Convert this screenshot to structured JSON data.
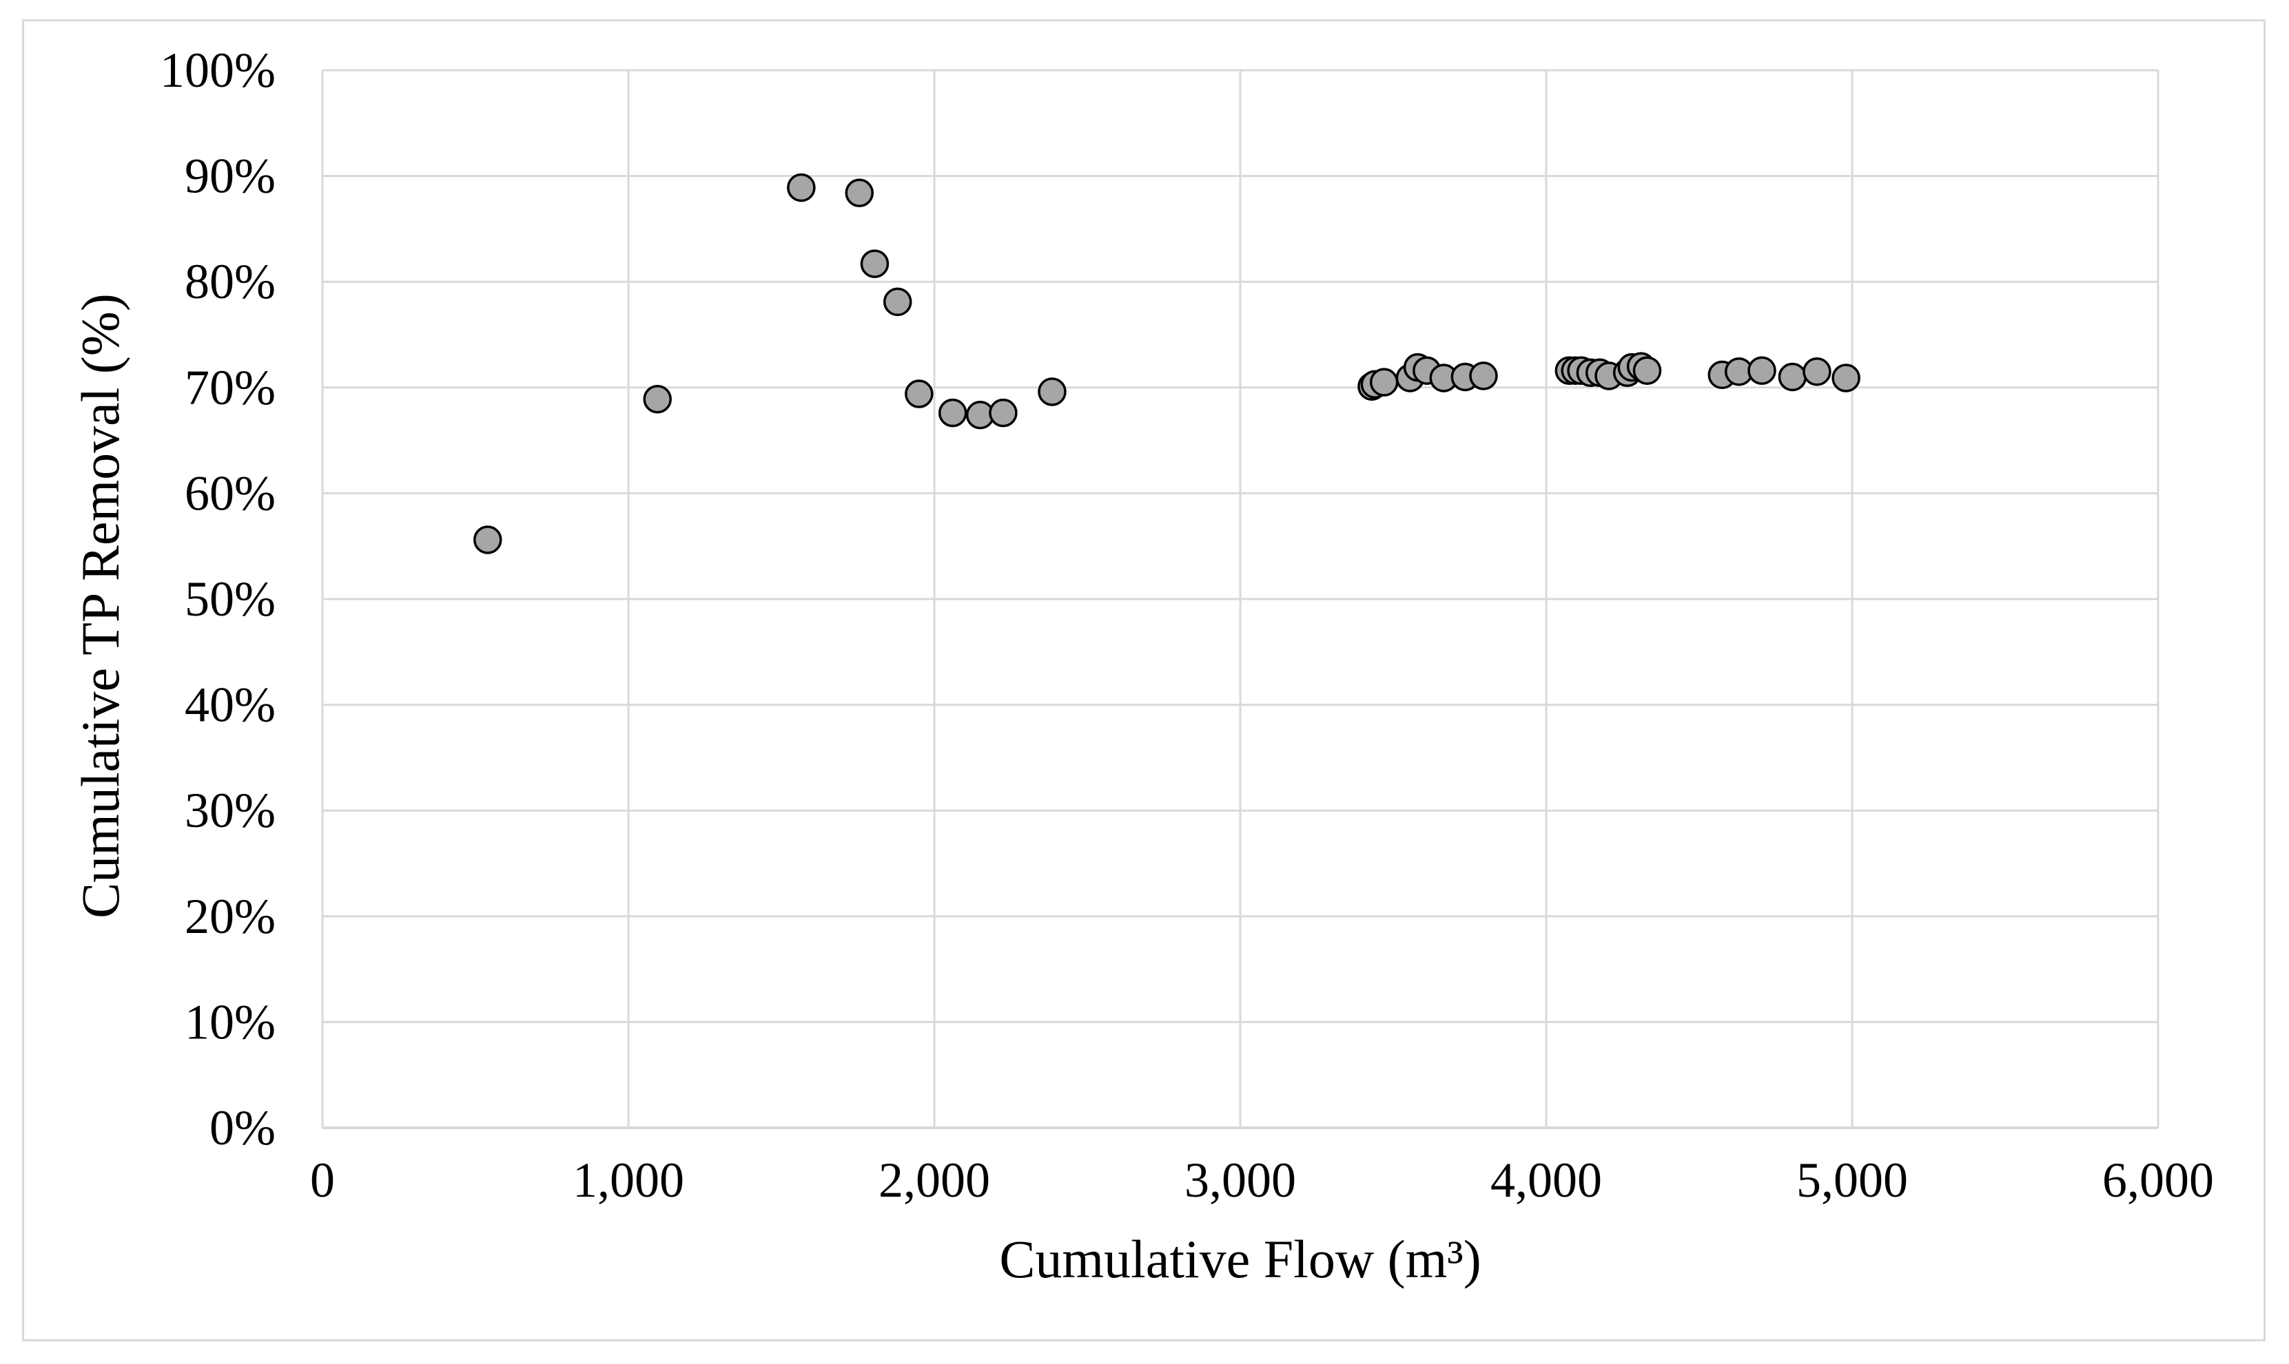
{
  "chart_data": {
    "type": "scatter",
    "title": "",
    "xlabel": "Cumulative Flow (m³)",
    "ylabel": "Cumulative TP Removal (%)",
    "xlim": [
      0,
      6000
    ],
    "ylim": [
      0,
      100
    ],
    "x_ticks": [
      0,
      1000,
      2000,
      3000,
      4000,
      5000,
      6000
    ],
    "x_tick_labels": [
      "0",
      "1,000",
      "2,000",
      "3,000",
      "4,000",
      "5,000",
      "6,000"
    ],
    "y_ticks": [
      0,
      10,
      20,
      30,
      40,
      50,
      60,
      70,
      80,
      90,
      100
    ],
    "y_tick_labels": [
      "0%",
      "10%",
      "20%",
      "30%",
      "40%",
      "50%",
      "60%",
      "70%",
      "80%",
      "90%",
      "100%"
    ],
    "grid": true,
    "legend": "none",
    "marker_color": "#a6a6a6",
    "marker_edge_color": "#000000",
    "grid_color": "#d9d9d9",
    "series": [
      {
        "points": [
          {
            "x": 540,
            "y": 55.6
          },
          {
            "x": 1095,
            "y": 68.9
          },
          {
            "x": 1565,
            "y": 88.9
          },
          {
            "x": 1755,
            "y": 88.4
          },
          {
            "x": 1805,
            "y": 81.7
          },
          {
            "x": 1880,
            "y": 78.1
          },
          {
            "x": 1950,
            "y": 69.4
          },
          {
            "x": 2060,
            "y": 67.6
          },
          {
            "x": 2150,
            "y": 67.4
          },
          {
            "x": 2225,
            "y": 67.6
          },
          {
            "x": 2385,
            "y": 69.6
          },
          {
            "x": 3430,
            "y": 70.1
          },
          {
            "x": 3440,
            "y": 70.3
          },
          {
            "x": 3470,
            "y": 70.5
          },
          {
            "x": 3555,
            "y": 70.9
          },
          {
            "x": 3580,
            "y": 71.9
          },
          {
            "x": 3610,
            "y": 71.6
          },
          {
            "x": 3665,
            "y": 70.9
          },
          {
            "x": 3735,
            "y": 71.0
          },
          {
            "x": 3795,
            "y": 71.1
          },
          {
            "x": 4075,
            "y": 71.6
          },
          {
            "x": 4095,
            "y": 71.6
          },
          {
            "x": 4115,
            "y": 71.6
          },
          {
            "x": 4145,
            "y": 71.4
          },
          {
            "x": 4175,
            "y": 71.4
          },
          {
            "x": 4205,
            "y": 71.1
          },
          {
            "x": 4265,
            "y": 71.4
          },
          {
            "x": 4280,
            "y": 71.9
          },
          {
            "x": 4310,
            "y": 72.0
          },
          {
            "x": 4330,
            "y": 71.6
          },
          {
            "x": 4575,
            "y": 71.2
          },
          {
            "x": 4630,
            "y": 71.5
          },
          {
            "x": 4705,
            "y": 71.6
          },
          {
            "x": 4805,
            "y": 71.0
          },
          {
            "x": 4885,
            "y": 71.5
          },
          {
            "x": 4980,
            "y": 70.9
          }
        ]
      }
    ]
  }
}
